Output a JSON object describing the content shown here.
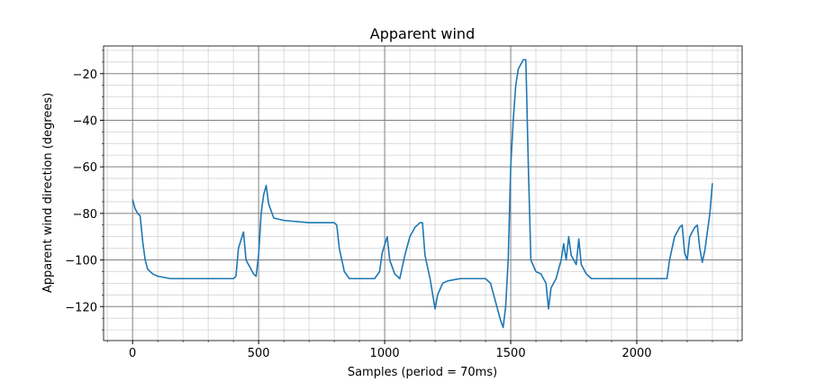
{
  "chart_data": {
    "type": "line",
    "title": "Apparent wind",
    "x_label": "Samples (period = 70ms)",
    "y_label": "Apparent wind direction (degrees)",
    "xlim": [
      -115,
      2418
    ],
    "ylim": [
      -134.6,
      -8.1
    ],
    "xticks": [
      0,
      500,
      1000,
      1500,
      2000
    ],
    "yticks": [
      {
        "value": -120,
        "label": "−120"
      },
      {
        "value": -100,
        "label": "−100"
      },
      {
        "value": -80,
        "label": "−80"
      },
      {
        "value": -60,
        "label": "−60"
      },
      {
        "value": -40,
        "label": "−40"
      },
      {
        "value": -20,
        "label": "−20"
      }
    ],
    "xminorticks": [
      -100,
      100,
      200,
      300,
      400,
      600,
      700,
      800,
      900,
      1100,
      1200,
      1300,
      1400,
      1600,
      1700,
      1800,
      1900,
      2100,
      2200,
      2300,
      2400
    ],
    "yminorticks": [
      -130,
      -125,
      -115,
      -110,
      -105,
      -95,
      -90,
      -85,
      -75,
      -70,
      -65,
      -55,
      -50,
      -45,
      -35,
      -30,
      -25,
      -15,
      -10
    ],
    "grid": true,
    "major_grid_color": "#808080",
    "minor_grid_color": "#d3d3d3",
    "series": [
      {
        "name": "Apparent wind",
        "color": "#1f77b4",
        "x": [
          0,
          10,
          20,
          30,
          40,
          50,
          60,
          80,
          100,
          150,
          200,
          300,
          400,
          410,
          420,
          440,
          450,
          470,
          480,
          490,
          500,
          510,
          520,
          530,
          540,
          560,
          600,
          700,
          800,
          810,
          820,
          840,
          860,
          900,
          960,
          980,
          990,
          1010,
          1020,
          1040,
          1060,
          1080,
          1100,
          1120,
          1140,
          1150,
          1160,
          1180,
          1200,
          1210,
          1230,
          1250,
          1300,
          1400,
          1420,
          1440,
          1460,
          1470,
          1480,
          1490,
          1500,
          1510,
          1520,
          1530,
          1550,
          1560,
          1570,
          1580,
          1600,
          1620,
          1640,
          1650,
          1660,
          1680,
          1700,
          1710,
          1720,
          1730,
          1740,
          1760,
          1770,
          1780,
          1800,
          1820,
          1900,
          2000,
          2100,
          2120,
          2130,
          2150,
          2170,
          2180,
          2190,
          2200,
          2210,
          2230,
          2240,
          2250,
          2260,
          2270,
          2280,
          2290,
          2300
        ],
        "values": [
          -74,
          -78,
          -80,
          -81,
          -92,
          -100,
          -104,
          -106,
          -107,
          -108,
          -108,
          -108,
          -108,
          -107,
          -95,
          -88,
          -100,
          -104,
          -106,
          -107,
          -98,
          -80,
          -72,
          -68,
          -76,
          -82,
          -83,
          -84,
          -84,
          -85,
          -95,
          -105,
          -108,
          -108,
          -108,
          -105,
          -97,
          -90,
          -100,
          -106,
          -108,
          -98,
          -90,
          -86,
          -84,
          -84,
          -98,
          -108,
          -121,
          -115,
          -110,
          -109,
          -108,
          -108,
          -110,
          -118,
          -126,
          -129,
          -120,
          -100,
          -60,
          -40,
          -25,
          -18,
          -14,
          -14,
          -60,
          -100,
          -105,
          -106,
          -110,
          -121,
          -112,
          -108,
          -100,
          -93,
          -100,
          -90,
          -98,
          -102,
          -91,
          -102,
          -106,
          -108,
          -108,
          -108,
          -108,
          -108,
          -100,
          -90,
          -86,
          -85,
          -97,
          -100,
          -90,
          -86,
          -85,
          -95,
          -101,
          -96,
          -88,
          -80,
          -67
        ]
      }
    ]
  }
}
